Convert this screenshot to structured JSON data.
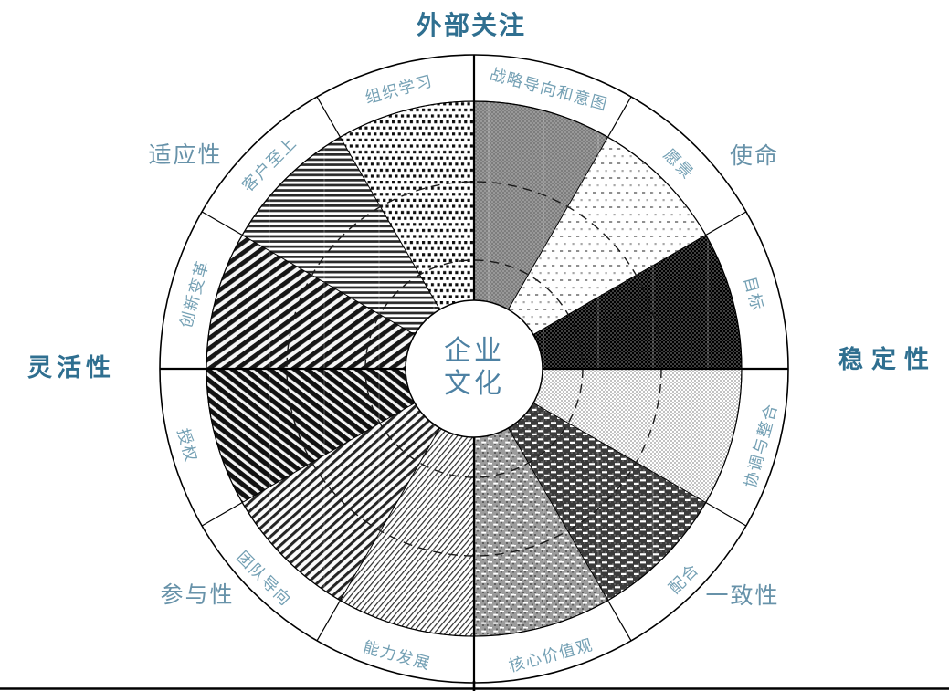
{
  "wheel": {
    "center_label_line1": "企业",
    "center_label_line2": "文化",
    "axes": {
      "top": "外部关注",
      "left": "灵活性",
      "right": "稳定性"
    },
    "traits": {
      "top_left": "适应性",
      "top_right": "使命",
      "bottom_right": "一致性",
      "bottom_left": "参与性"
    },
    "sectors": [
      {
        "label": "战略导向和意图",
        "name": "strategic-direction-and-intent",
        "pattern": "solid-gray-checker"
      },
      {
        "label": "愿景",
        "name": "vision",
        "pattern": "sparse-dots-dashes"
      },
      {
        "label": "目标",
        "name": "goals",
        "pattern": "dark-checker"
      },
      {
        "label": "协调与整合",
        "name": "coordination-and-integration",
        "pattern": "light-checker"
      },
      {
        "label": "配合",
        "name": "agreement",
        "pattern": "dark-checker-white-dashes"
      },
      {
        "label": "核心价值观",
        "name": "core-values",
        "pattern": "medium-checker-white-dashes"
      },
      {
        "label": "能力发展",
        "name": "capability-development",
        "pattern": "thin-diagonal-lines"
      },
      {
        "label": "团队导向",
        "name": "team-orientation",
        "pattern": "diagonal-hatch-up"
      },
      {
        "label": "授权",
        "name": "empowerment",
        "pattern": "diagonal-hatch-down-bold"
      },
      {
        "label": "创新变革",
        "name": "creating-change",
        "pattern": "diagonal-hatch-up-bold"
      },
      {
        "label": "客户至上",
        "name": "customer-focus",
        "pattern": "horizontal-stripes"
      },
      {
        "label": "组织学习",
        "name": "organizational-learning",
        "pattern": "dot-grid"
      }
    ],
    "reference_circle_radii": [
      119,
      205
    ],
    "colors": {
      "axis_label": "#2f6f90",
      "trait_label": "#6792a9",
      "ring_label": "#74a0b4",
      "center_label": "#4d81a3",
      "line": "#000000"
    }
  }
}
